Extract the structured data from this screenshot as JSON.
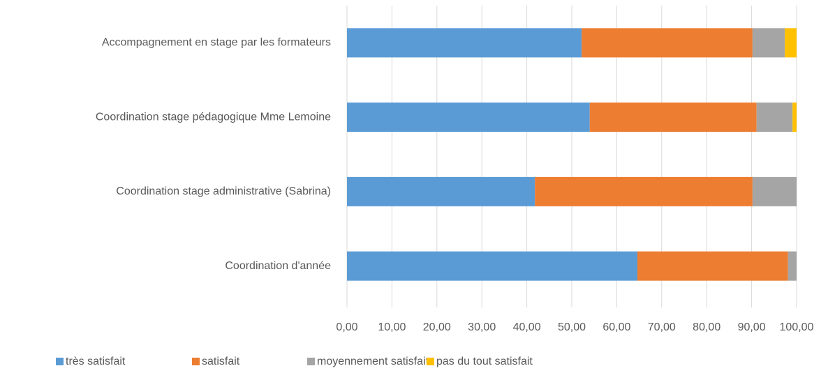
{
  "chart_data": {
    "type": "stacked_barh",
    "categories": [
      "Accompagnement en stage par les formateurs",
      "Coordination stage pédagogique Mme Lemoine",
      "Coordination stage administrative (Sabrina)",
      "Coordination d'année"
    ],
    "series": [
      {
        "name": "très satisfait",
        "color": "#5b9bd5",
        "values": [
          52.2,
          54.0,
          41.8,
          64.6
        ]
      },
      {
        "name": "satisfait",
        "color": "#ed7d31",
        "values": [
          38.0,
          37.1,
          48.4,
          33.5
        ]
      },
      {
        "name": "moyennement satisfait",
        "color": "#a5a5a5",
        "values": [
          7.2,
          8.0,
          9.8,
          1.9
        ]
      },
      {
        "name": "pas du tout satisfait",
        "color": "#ffc000",
        "values": [
          2.6,
          0.9,
          0,
          0
        ]
      }
    ],
    "xlim": [
      0,
      100
    ],
    "xticks": [
      {
        "value": 0,
        "label": "0,00"
      },
      {
        "value": 10,
        "label": "10,00"
      },
      {
        "value": 20,
        "label": "20,00"
      },
      {
        "value": 30,
        "label": "30,00"
      },
      {
        "value": 40,
        "label": "40,00"
      },
      {
        "value": 50,
        "label": "50,00"
      },
      {
        "value": 60,
        "label": "60,00"
      },
      {
        "value": 70,
        "label": "70,00"
      },
      {
        "value": 80,
        "label": "80,00"
      },
      {
        "value": 90,
        "label": "90,00"
      },
      {
        "value": 100,
        "label": "100,00"
      }
    ],
    "grid": true,
    "legend": "bottom"
  }
}
